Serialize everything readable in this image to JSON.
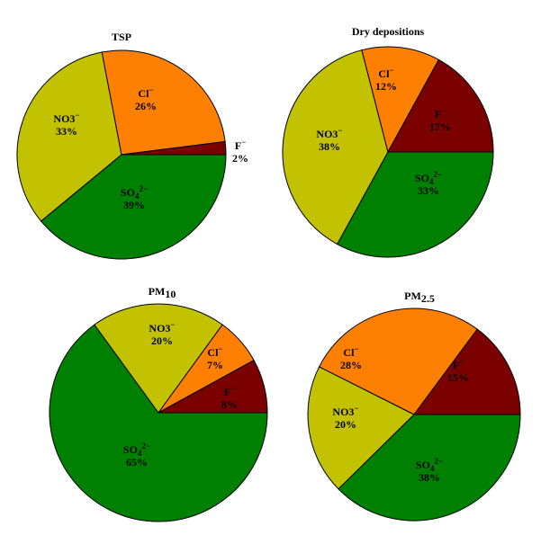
{
  "chart_data": [
    {
      "type": "pie",
      "title": "TSP",
      "slices": [
        {
          "label": "F",
          "sup": "−",
          "value": 2,
          "pct": "2%",
          "color": "#7b0000"
        },
        {
          "label": "SO",
          "sub": "4",
          "sup": "2−",
          "value": 39,
          "pct": "39%",
          "color": "#008000"
        },
        {
          "label": "NO3",
          "sup": "−",
          "value": 33,
          "pct": "33%",
          "color": "#c2c200"
        },
        {
          "label": "Cl",
          "sup": "−",
          "value": 26,
          "pct": "26%",
          "color": "#ff8000"
        }
      ]
    },
    {
      "type": "pie",
      "title": "Dry depositions",
      "slices": [
        {
          "label": "F",
          "sup": "−",
          "value": 17,
          "pct": "17%",
          "color": "#7b0000"
        },
        {
          "label": "SO",
          "sub": "4",
          "sup": "2−",
          "value": 33,
          "pct": "33%",
          "color": "#008000"
        },
        {
          "label": "NO3",
          "sup": "−",
          "value": 38,
          "pct": "38%",
          "color": "#c2c200"
        },
        {
          "label": "Cl",
          "sup": "−",
          "value": 12,
          "pct": "12%",
          "color": "#ff8000"
        }
      ]
    },
    {
      "type": "pie",
      "title": "PM",
      "title_sub": "10",
      "slices": [
        {
          "label": "F",
          "sup": "−",
          "value": 8,
          "pct": "8%",
          "color": "#7b0000"
        },
        {
          "label": "SO",
          "sub": "4",
          "sup": "2−",
          "value": 65,
          "pct": "65%",
          "color": "#008000"
        },
        {
          "label": "NO3",
          "sup": "−",
          "value": 20,
          "pct": "20%",
          "color": "#c2c200"
        },
        {
          "label": "Cl",
          "sup": "−",
          "value": 7,
          "pct": "7%",
          "color": "#ff8000"
        }
      ]
    },
    {
      "type": "pie",
      "title": "PM",
      "title_sub": "2.5",
      "slices": [
        {
          "label": "F",
          "sup": "−",
          "value": 15,
          "pct": "15%",
          "color": "#7b0000"
        },
        {
          "label": "SO",
          "sub": "4",
          "sup": "2−",
          "value": 38,
          "pct": "38%",
          "color": "#008000"
        },
        {
          "label": "NO3",
          "sup": "−",
          "value": 20,
          "pct": "20%",
          "color": "#c2c200"
        },
        {
          "label": "Cl",
          "sup": "−",
          "value": 28,
          "pct": "28%",
          "color": "#ff8000"
        }
      ]
    }
  ]
}
